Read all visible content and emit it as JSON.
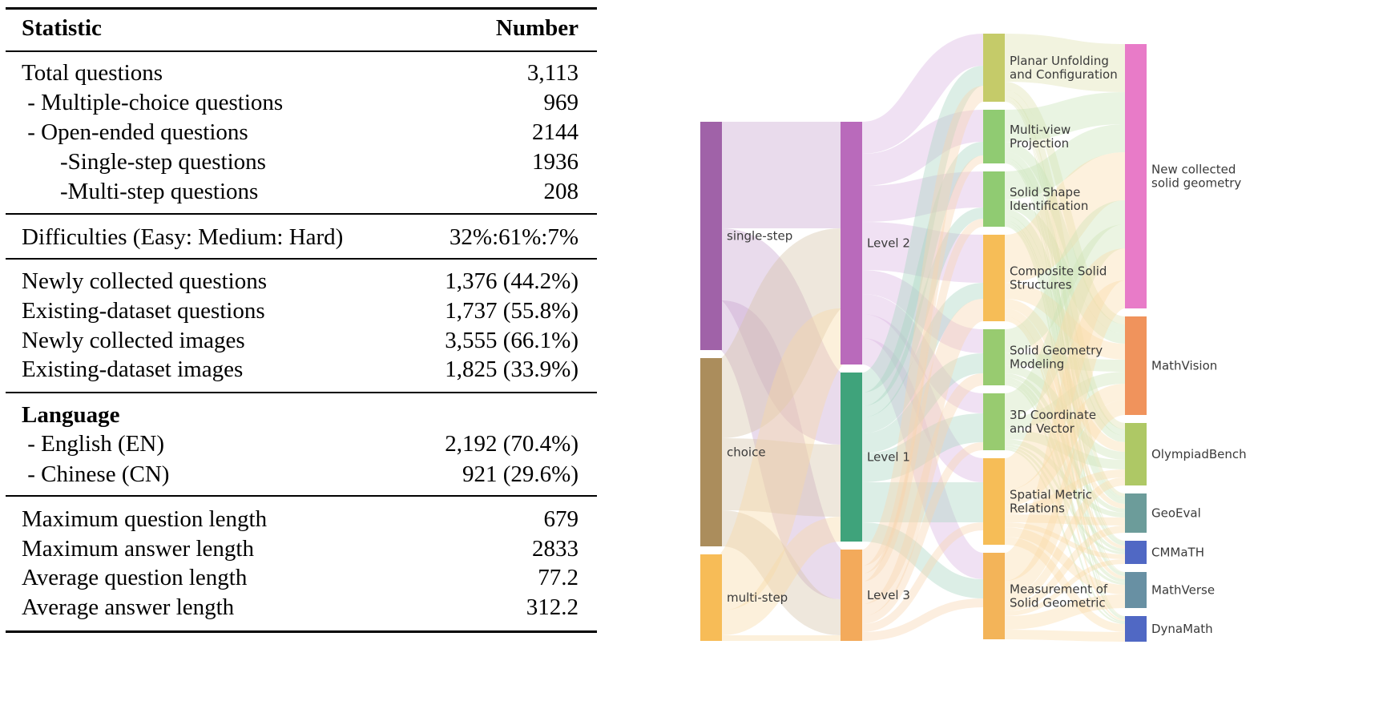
{
  "table": {
    "header": {
      "statistic": "Statistic",
      "number": "Number"
    },
    "section1": [
      {
        "label": "Total questions",
        "value": "3,113"
      },
      {
        "label": " - Multiple-choice questions",
        "value": "969"
      },
      {
        "label": " - Open-ended questions",
        "value": "2144"
      },
      {
        "label": "-Single-step questions",
        "value": "1936"
      },
      {
        "label": "-Multi-step questions",
        "value": "208"
      }
    ],
    "section2": [
      {
        "label": "Difficulties (Easy: Medium: Hard)",
        "value": "32%:61%:7%"
      }
    ],
    "section3": [
      {
        "label": "Newly collected questions",
        "value": "1,376 (44.2%)"
      },
      {
        "label": "Existing-dataset questions",
        "value": "1,737 (55.8%)"
      },
      {
        "label": "Newly collected images",
        "value": "3,555 (66.1%)"
      },
      {
        "label": "Existing-dataset images",
        "value": "1,825 (33.9%)"
      }
    ],
    "section4": {
      "title": "Language",
      "rows": [
        {
          "label": " - English (EN)",
          "value": "2,192 (70.4%)"
        },
        {
          "label": " - Chinese (CN)",
          "value": "921 (29.6%)"
        }
      ]
    },
    "section5": [
      {
        "label": "Maximum question length",
        "value": "679"
      },
      {
        "label": "Maximum answer length",
        "value": "2833"
      },
      {
        "label": "Average question length",
        "value": "77.2"
      },
      {
        "label": "Average answer length",
        "value": "312.2"
      }
    ]
  },
  "sankey": {
    "columns": [
      [
        {
          "id": "single",
          "label_lines": [
            "single-step"
          ],
          "color": "#a062a8",
          "link_color": "#c9a6d0"
        },
        {
          "id": "choice",
          "label_lines": [
            "choice"
          ],
          "color": "#ab8d5c",
          "link_color": "#d4c3a8"
        },
        {
          "id": "multi",
          "label_lines": [
            "multi-step"
          ],
          "color": "#f7bc57",
          "link_color": "#f7d9a4"
        }
      ],
      [
        {
          "id": "L2",
          "label_lines": [
            "Level 2"
          ],
          "color": "#b96abb",
          "link_color": "#d9b3e0"
        },
        {
          "id": "L1",
          "label_lines": [
            "Level 1"
          ],
          "color": "#3fa37b",
          "link_color": "#a8d5c0"
        },
        {
          "id": "L3",
          "label_lines": [
            "Level 3"
          ],
          "color": "#f3aa5b",
          "link_color": "#f8d5ae"
        }
      ],
      [
        {
          "id": "PU",
          "label_lines": [
            "Planar Unfolding",
            "and Configuration"
          ],
          "color": "#c5cb69",
          "link_color": "#dfe2b0"
        },
        {
          "id": "MV",
          "label_lines": [
            "Multi-view",
            "Projection"
          ],
          "color": "#90cb72",
          "link_color": "#c9e4b6"
        },
        {
          "id": "SS",
          "label_lines": [
            "Solid Shape",
            "Identification"
          ],
          "color": "#90cb72",
          "link_color": "#c9e4b6"
        },
        {
          "id": "CS",
          "label_lines": [
            "Composite Solid",
            "Structures"
          ],
          "color": "#f6bd57",
          "link_color": "#f9dcab"
        },
        {
          "id": "SG",
          "label_lines": [
            "Solid Geometry",
            "Modeling"
          ],
          "color": "#98cb70",
          "link_color": "#cce4b6"
        },
        {
          "id": "3D",
          "label_lines": [
            "3D Coordinate",
            "and Vector"
          ],
          "color": "#98cb70",
          "link_color": "#cce4b6"
        },
        {
          "id": "SM",
          "label_lines": [
            "Spatial Metric",
            "Relations"
          ],
          "color": "#f6bd57",
          "link_color": "#f9dcab"
        },
        {
          "id": "ME",
          "label_lines": [
            "Measurement of",
            "Solid Geometric"
          ],
          "color": "#f3b459",
          "link_color": "#f9dcab"
        }
      ],
      [
        {
          "id": "NEW",
          "label_lines": [
            "New collected",
            "solid geometry"
          ],
          "color": "#e87bc8",
          "link_color": "#f0b8dc"
        },
        {
          "id": "MVI",
          "label_lines": [
            "MathVision"
          ],
          "color": "#f0935c",
          "link_color": "#f0b89a"
        },
        {
          "id": "OB",
          "label_lines": [
            "OlympiadBench"
          ],
          "color": "#aec865",
          "link_color": "#d3e3a8"
        },
        {
          "id": "GE",
          "label_lines": [
            "GeoEval"
          ],
          "color": "#6c9c9a",
          "link_color": "#b4cccb"
        },
        {
          "id": "CM",
          "label_lines": [
            "CMMaTH"
          ],
          "color": "#5068c4",
          "link_color": "#a8b4e0"
        },
        {
          "id": "MVE",
          "label_lines": [
            "MathVerse"
          ],
          "color": "#6890a3",
          "link_color": "#b2c6d0"
        },
        {
          "id": "DY",
          "label_lines": [
            "DynaMath"
          ],
          "color": "#5068c4",
          "link_color": "#a8b4e0"
        }
      ]
    ],
    "links": [
      [
        "single",
        "L2",
        133
      ],
      [
        "single",
        "L1",
        90
      ],
      [
        "single",
        "L3",
        62
      ],
      [
        "choice",
        "L2",
        100
      ],
      [
        "choice",
        "L1",
        90
      ],
      [
        "choice",
        "L3",
        45
      ],
      [
        "multi",
        "L2",
        70
      ],
      [
        "multi",
        "L1",
        31
      ],
      [
        "multi",
        "L3",
        7
      ],
      [
        "L2",
        "PU",
        40
      ],
      [
        "L2",
        "MV",
        40
      ],
      [
        "L2",
        "SS",
        45
      ],
      [
        "L2",
        "CS",
        60
      ],
      [
        "L2",
        "SG",
        30
      ],
      [
        "L2",
        "3D",
        25
      ],
      [
        "L2",
        "SM",
        30
      ],
      [
        "L2",
        "ME",
        33
      ],
      [
        "L1",
        "PU",
        25
      ],
      [
        "L1",
        "MV",
        17
      ],
      [
        "L1",
        "SS",
        14
      ],
      [
        "L1",
        "CS",
        20
      ],
      [
        "L1",
        "SG",
        25
      ],
      [
        "L1",
        "3D",
        36
      ],
      [
        "L1",
        "SM",
        50
      ],
      [
        "L1",
        "ME",
        24
      ],
      [
        "L3",
        "PU",
        20
      ],
      [
        "L3",
        "MV",
        10
      ],
      [
        "L3",
        "SS",
        10
      ],
      [
        "L3",
        "CS",
        28
      ],
      [
        "L3",
        "SG",
        15
      ],
      [
        "L3",
        "3D",
        10
      ],
      [
        "L3",
        "SM",
        10
      ],
      [
        "L3",
        "ME",
        11
      ],
      [
        "PU",
        "NEW",
        60
      ],
      [
        "PU",
        "MVI",
        10
      ],
      [
        "PU",
        "OB",
        8
      ],
      [
        "PU",
        "GE",
        4
      ],
      [
        "PU",
        "CM",
        1
      ],
      [
        "PU",
        "MVE",
        1
      ],
      [
        "PU",
        "DY",
        1
      ],
      [
        "MV",
        "NEW",
        40
      ],
      [
        "MV",
        "MVI",
        12
      ],
      [
        "MV",
        "OB",
        8
      ],
      [
        "MV",
        "GE",
        3
      ],
      [
        "MV",
        "CM",
        2
      ],
      [
        "MV",
        "MVE",
        1
      ],
      [
        "MV",
        "DY",
        1
      ],
      [
        "SS",
        "NEW",
        35
      ],
      [
        "SS",
        "MVI",
        12
      ],
      [
        "SS",
        "OB",
        8
      ],
      [
        "SS",
        "GE",
        6
      ],
      [
        "SS",
        "CM",
        3
      ],
      [
        "SS",
        "MVE",
        3
      ],
      [
        "SS",
        "DY",
        2
      ],
      [
        "CS",
        "NEW",
        60
      ],
      [
        "CS",
        "MVI",
        20
      ],
      [
        "CS",
        "OB",
        12
      ],
      [
        "CS",
        "GE",
        6
      ],
      [
        "CS",
        "CM",
        4
      ],
      [
        "CS",
        "MVE",
        4
      ],
      [
        "CS",
        "DY",
        2
      ],
      [
        "SG",
        "NEW",
        30
      ],
      [
        "SG",
        "MVI",
        15
      ],
      [
        "SG",
        "OB",
        10
      ],
      [
        "SG",
        "GE",
        5
      ],
      [
        "SG",
        "CM",
        4
      ],
      [
        "SG",
        "MVE",
        4
      ],
      [
        "SG",
        "DY",
        2
      ],
      [
        "3D",
        "NEW",
        30
      ],
      [
        "3D",
        "MVI",
        15
      ],
      [
        "3D",
        "OB",
        12
      ],
      [
        "3D",
        "GE",
        6
      ],
      [
        "3D",
        "CM",
        3
      ],
      [
        "3D",
        "MVE",
        3
      ],
      [
        "3D",
        "DY",
        2
      ],
      [
        "SM",
        "NEW",
        40
      ],
      [
        "SM",
        "MVI",
        20
      ],
      [
        "SM",
        "OB",
        10
      ],
      [
        "SM",
        "GE",
        10
      ],
      [
        "SM",
        "CM",
        6
      ],
      [
        "SM",
        "MVE",
        12
      ],
      [
        "SM",
        "DY",
        10
      ],
      [
        "ME",
        "NEW",
        35
      ],
      [
        "ME",
        "MVI",
        19
      ],
      [
        "ME",
        "OB",
        10
      ],
      [
        "ME",
        "GE",
        9
      ],
      [
        "ME",
        "CM",
        6
      ],
      [
        "ME",
        "MVE",
        17
      ],
      [
        "ME",
        "DY",
        12
      ]
    ]
  }
}
